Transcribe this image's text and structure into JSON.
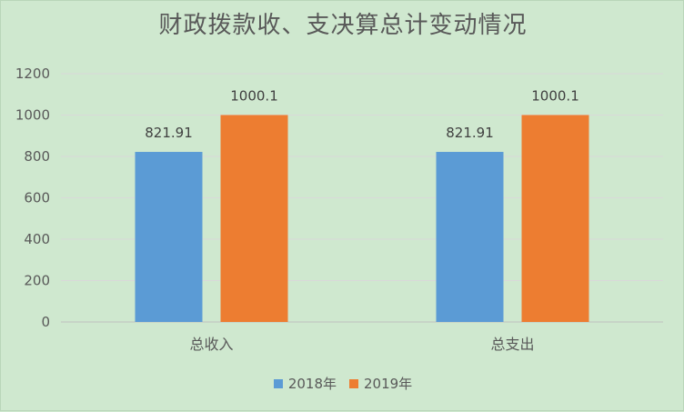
{
  "chart_data": {
    "type": "bar",
    "title": "财政拨款收、支决算总计变动情况",
    "categories": [
      "总收入",
      "总支出"
    ],
    "series": [
      {
        "name": "2018年",
        "values": [
          821.91,
          821.91
        ],
        "labels": [
          "821.91",
          "821.91"
        ],
        "color": "#5b9bd5"
      },
      {
        "name": "2019年",
        "values": [
          1000.1,
          1000.1
        ],
        "labels": [
          "1000.1",
          "1000.1"
        ],
        "color": "#ed7d31"
      }
    ],
    "ylim": [
      0,
      1200
    ],
    "yticks": [
      "0",
      "200",
      "400",
      "600",
      "800",
      "1000",
      "1200"
    ],
    "grid": true,
    "legend_position": "bottom"
  }
}
